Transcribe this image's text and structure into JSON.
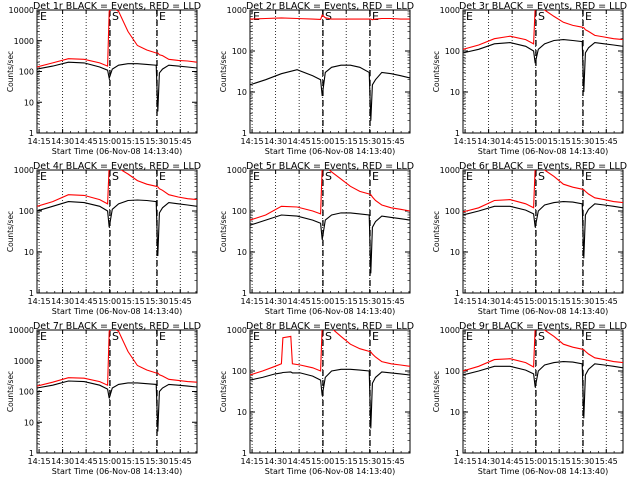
{
  "figure": {
    "background": "#ffffff",
    "colors": {
      "events": "#000000",
      "lld": "#ff0000",
      "axes": "#000000"
    },
    "ylabel": "Counts/sec",
    "xlabel": "Start Time (06-Nov-08 14:13:40)",
    "xticks": [
      "14:15",
      "14:30",
      "14:45",
      "15:00",
      "15:15",
      "15:30",
      "15:45"
    ],
    "flare_markers": [
      {
        "label": "S",
        "time_min": 46.5,
        "line": "dashed"
      },
      {
        "label": "E",
        "time_min": 76.5,
        "line": "dashed"
      }
    ]
  },
  "chart_data": [
    {
      "type": "line",
      "title": "Det 1r BLACK = Events, RED = LLD",
      "xlabel": "Start Time (06-Nov-08 14:13:40)",
      "ylabel": "Counts/sec",
      "scale": "log",
      "ylim": [
        1,
        10000
      ],
      "xlim_min": [
        0,
        102
      ],
      "yticks": [
        "1",
        "10",
        "100",
        "1000",
        "10000"
      ],
      "x": [
        0,
        10,
        20,
        30,
        40,
        45,
        46,
        48,
        52,
        58,
        64,
        70,
        76,
        77,
        78,
        80,
        84,
        90,
        96,
        102
      ],
      "series": [
        {
          "name": "Events",
          "values": [
            120,
            150,
            200,
            190,
            140,
            110,
            60,
            120,
            160,
            180,
            180,
            170,
            160,
            5,
            90,
            120,
            160,
            150,
            140,
            130
          ]
        },
        {
          "name": "LLD",
          "values": [
            140,
            190,
            260,
            250,
            190,
            150,
            9000,
            12000,
            9000,
            2000,
            700,
            500,
            400,
            400,
            350,
            330,
            250,
            230,
            220,
            200
          ]
        }
      ]
    },
    {
      "type": "line",
      "title": "Det 2r BLACK = Events, RED = LLD",
      "xlabel": "Start Time (06-Nov-08 14:13:40)",
      "ylabel": "Counts/sec",
      "scale": "log",
      "ylim": [
        1,
        1000
      ],
      "xlim_min": [
        0,
        102
      ],
      "yticks": [
        "1",
        "10",
        "100",
        "1000"
      ],
      "x": [
        0,
        10,
        20,
        30,
        40,
        45,
        46,
        48,
        52,
        58,
        64,
        70,
        76,
        77,
        78,
        80,
        84,
        90,
        96,
        102
      ],
      "series": [
        {
          "name": "Events",
          "values": [
            15,
            20,
            28,
            35,
            25,
            20,
            8,
            30,
            40,
            45,
            45,
            40,
            30,
            2,
            15,
            20,
            30,
            28,
            25,
            22
          ]
        },
        {
          "name": "LLD",
          "values": [
            600,
            620,
            640,
            620,
            600,
            590,
            750,
            650,
            600,
            600,
            600,
            600,
            600,
            600,
            580,
            600,
            620,
            620,
            600,
            600
          ]
        }
      ]
    },
    {
      "type": "line",
      "title": "Det 3r BLACK = Events, RED = LLD",
      "xlabel": "Start Time (06-Nov-08 14:13:40)",
      "ylabel": "Counts/sec",
      "scale": "log",
      "ylim": [
        1,
        1000
      ],
      "xlim_min": [
        0,
        102
      ],
      "yticks": [
        "1",
        "10",
        "100",
        "1000"
      ],
      "x": [
        0,
        10,
        20,
        30,
        40,
        45,
        46,
        48,
        52,
        58,
        64,
        70,
        76,
        77,
        78,
        80,
        84,
        90,
        96,
        102
      ],
      "series": [
        {
          "name": "Events",
          "values": [
            90,
            110,
            150,
            160,
            130,
            100,
            50,
            110,
            150,
            180,
            190,
            180,
            170,
            10,
            90,
            120,
            160,
            150,
            140,
            130
          ]
        },
        {
          "name": "LLD",
          "values": [
            110,
            140,
            200,
            230,
            190,
            150,
            1200,
            1200,
            1000,
            700,
            500,
            420,
            380,
            370,
            330,
            300,
            240,
            220,
            200,
            190
          ]
        }
      ]
    },
    {
      "type": "line",
      "title": "Det 4r BLACK = Events, RED = LLD",
      "xlabel": "Start Time (06-Nov-08 14:13:40)",
      "ylabel": "Counts/sec",
      "scale": "log",
      "ylim": [
        1,
        1000
      ],
      "xlim_min": [
        0,
        102
      ],
      "yticks": [
        "1",
        "10",
        "100",
        "1000"
      ],
      "x": [
        0,
        10,
        20,
        30,
        40,
        45,
        46,
        48,
        52,
        58,
        64,
        70,
        76,
        77,
        78,
        80,
        84,
        90,
        96,
        102
      ],
      "series": [
        {
          "name": "Events",
          "values": [
            100,
            130,
            170,
            160,
            130,
            100,
            40,
            110,
            150,
            180,
            185,
            180,
            170,
            8,
            90,
            120,
            160,
            150,
            140,
            130
          ]
        },
        {
          "name": "LLD",
          "values": [
            130,
            170,
            250,
            240,
            190,
            150,
            1300,
            1300,
            1100,
            800,
            550,
            450,
            400,
            390,
            350,
            320,
            250,
            220,
            200,
            190
          ]
        }
      ]
    },
    {
      "type": "line",
      "title": "Det 5r BLACK = Events, RED = LLD",
      "xlabel": "Start Time (06-Nov-08 14:13:40)",
      "ylabel": "Counts/sec",
      "scale": "log",
      "ylim": [
        1,
        1000
      ],
      "xlim_min": [
        0,
        102
      ],
      "yticks": [
        "1",
        "10",
        "100",
        "1000"
      ],
      "x": [
        0,
        10,
        20,
        30,
        40,
        45,
        46,
        48,
        52,
        58,
        64,
        70,
        76,
        77,
        78,
        80,
        84,
        90,
        96,
        102
      ],
      "series": [
        {
          "name": "Events",
          "values": [
            45,
            60,
            80,
            75,
            60,
            50,
            20,
            60,
            80,
            90,
            90,
            85,
            80,
            3,
            40,
            55,
            75,
            70,
            65,
            60
          ]
        },
        {
          "name": "LLD",
          "values": [
            60,
            80,
            130,
            125,
            100,
            85,
            1200,
            1200,
            900,
            600,
            400,
            300,
            260,
            250,
            220,
            180,
            140,
            120,
            110,
            100
          ]
        }
      ]
    },
    {
      "type": "line",
      "title": "Det 6r BLACK = Events, RED = LLD",
      "xlabel": "Start Time (06-Nov-08 14:13:40)",
      "ylabel": "Counts/sec",
      "scale": "log",
      "ylim": [
        1,
        1000
      ],
      "xlim_min": [
        0,
        102
      ],
      "yticks": [
        "1",
        "10",
        "100",
        "1000"
      ],
      "x": [
        0,
        10,
        20,
        30,
        40,
        45,
        46,
        48,
        52,
        58,
        64,
        70,
        76,
        77,
        78,
        80,
        84,
        90,
        96,
        102
      ],
      "series": [
        {
          "name": "Events",
          "values": [
            80,
            100,
            130,
            130,
            105,
            85,
            40,
            100,
            140,
            160,
            170,
            165,
            150,
            7,
            80,
            110,
            150,
            140,
            130,
            120
          ]
        },
        {
          "name": "LLD",
          "values": [
            95,
            120,
            180,
            190,
            150,
            120,
            1200,
            1200,
            1000,
            700,
            450,
            380,
            340,
            330,
            300,
            260,
            210,
            190,
            170,
            160
          ]
        }
      ]
    },
    {
      "type": "line",
      "title": "Det 7r BLACK = Events, RED = LLD",
      "xlabel": "Start Time (06-Nov-08 14:13:40)",
      "ylabel": "Counts/sec",
      "scale": "log",
      "ylim": [
        1,
        10000
      ],
      "xlim_min": [
        0,
        102
      ],
      "yticks": [
        "1",
        "10",
        "100",
        "1000",
        "10000"
      ],
      "x": [
        0,
        10,
        20,
        30,
        40,
        45,
        46,
        48,
        52,
        58,
        64,
        70,
        76,
        77,
        78,
        80,
        84,
        90,
        96,
        102
      ],
      "series": [
        {
          "name": "Events",
          "values": [
            130,
            160,
            220,
            210,
            160,
            120,
            60,
            130,
            170,
            190,
            190,
            180,
            170,
            5,
            100,
            130,
            170,
            160,
            150,
            140
          ]
        },
        {
          "name": "LLD",
          "values": [
            150,
            200,
            280,
            270,
            210,
            160,
            9000,
            12000,
            9000,
            2000,
            700,
            500,
            400,
            400,
            350,
            320,
            250,
            230,
            210,
            200
          ]
        }
      ]
    },
    {
      "type": "line",
      "title": "Det 8r BLACK = Events, RED = LLD",
      "xlabel": "Start Time (06-Nov-08 14:13:40)",
      "ylabel": "Counts/sec",
      "scale": "log",
      "ylim": [
        1,
        1000
      ],
      "xlim_min": [
        0,
        102
      ],
      "yticks": [
        "1",
        "10",
        "100",
        "1000"
      ],
      "x": [
        0,
        8,
        16,
        20,
        21,
        26,
        27,
        32,
        40,
        45,
        46,
        48,
        52,
        58,
        64,
        70,
        76,
        77,
        78,
        80,
        84,
        90,
        96,
        102
      ],
      "series": [
        {
          "name": "Events",
          "values": [
            60,
            70,
            85,
            90,
            92,
            95,
            90,
            90,
            75,
            60,
            25,
            70,
            100,
            110,
            110,
            105,
            100,
            4,
            50,
            70,
            95,
            90,
            85,
            80
          ]
        },
        {
          "name": "LLD",
          "values": [
            80,
            100,
            130,
            150,
            650,
            700,
            150,
            140,
            120,
            100,
            1300,
            1300,
            1100,
            700,
            450,
            350,
            300,
            290,
            260,
            220,
            170,
            150,
            140,
            130
          ]
        }
      ]
    },
    {
      "type": "line",
      "title": "Det 9r BLACK = Events, RED = LLD",
      "xlabel": "Start Time (06-Nov-08 14:13:40)",
      "ylabel": "Counts/sec",
      "scale": "log",
      "ylim": [
        1,
        1000
      ],
      "xlim_min": [
        0,
        102
      ],
      "yticks": [
        "1",
        "10",
        "100",
        "1000"
      ],
      "x": [
        0,
        10,
        20,
        30,
        40,
        45,
        46,
        48,
        52,
        58,
        64,
        70,
        76,
        77,
        78,
        80,
        84,
        90,
        96,
        102
      ],
      "series": [
        {
          "name": "Events",
          "values": [
            80,
            100,
            130,
            130,
            105,
            85,
            40,
            100,
            140,
            160,
            170,
            165,
            150,
            7,
            80,
            110,
            150,
            140,
            130,
            120
          ]
        },
        {
          "name": "LLD",
          "values": [
            100,
            130,
            190,
            200,
            160,
            125,
            1200,
            1200,
            1000,
            700,
            450,
            380,
            340,
            330,
            300,
            260,
            210,
            190,
            170,
            160
          ]
        }
      ]
    }
  ]
}
